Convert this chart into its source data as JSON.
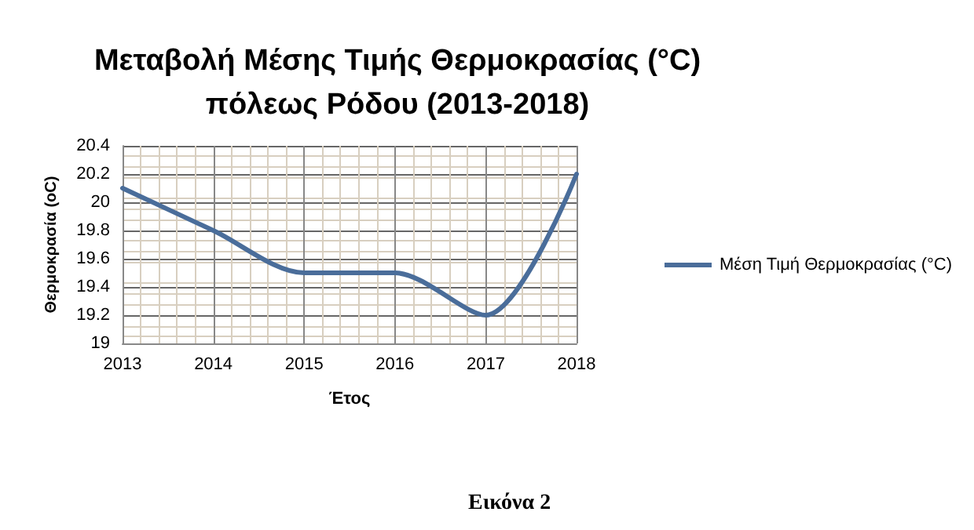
{
  "chart_data": {
    "type": "line",
    "title": "Μεταβολή Μέσης Τιμής Θερμοκρασίας (°C)\nπόλεως Ρόδου (2013-2018)",
    "xlabel": "Έτος",
    "ylabel": "Θερμοκρασία (oC)",
    "x": [
      2013,
      2014,
      2015,
      2016,
      2017,
      2018
    ],
    "series": [
      {
        "name": "Μέση Τιμή Θερμοκρασίας (°C)",
        "color": "#4a6d9a",
        "values": [
          20.1,
          19.8,
          19.5,
          19.5,
          19.2,
          20.2
        ]
      }
    ],
    "xlim": [
      2013,
      2018
    ],
    "xticks": [
      2013,
      2014,
      2015,
      2016,
      2017,
      2018
    ],
    "ylim": [
      19,
      20.4
    ],
    "yticks": [
      19,
      19.2,
      19.4,
      19.6,
      19.8,
      20,
      20.2,
      20.4
    ],
    "grid": true,
    "legend": "right",
    "marker": "none",
    "line_style": "solid",
    "annotations": [
      "Εικόνα 2"
    ]
  }
}
